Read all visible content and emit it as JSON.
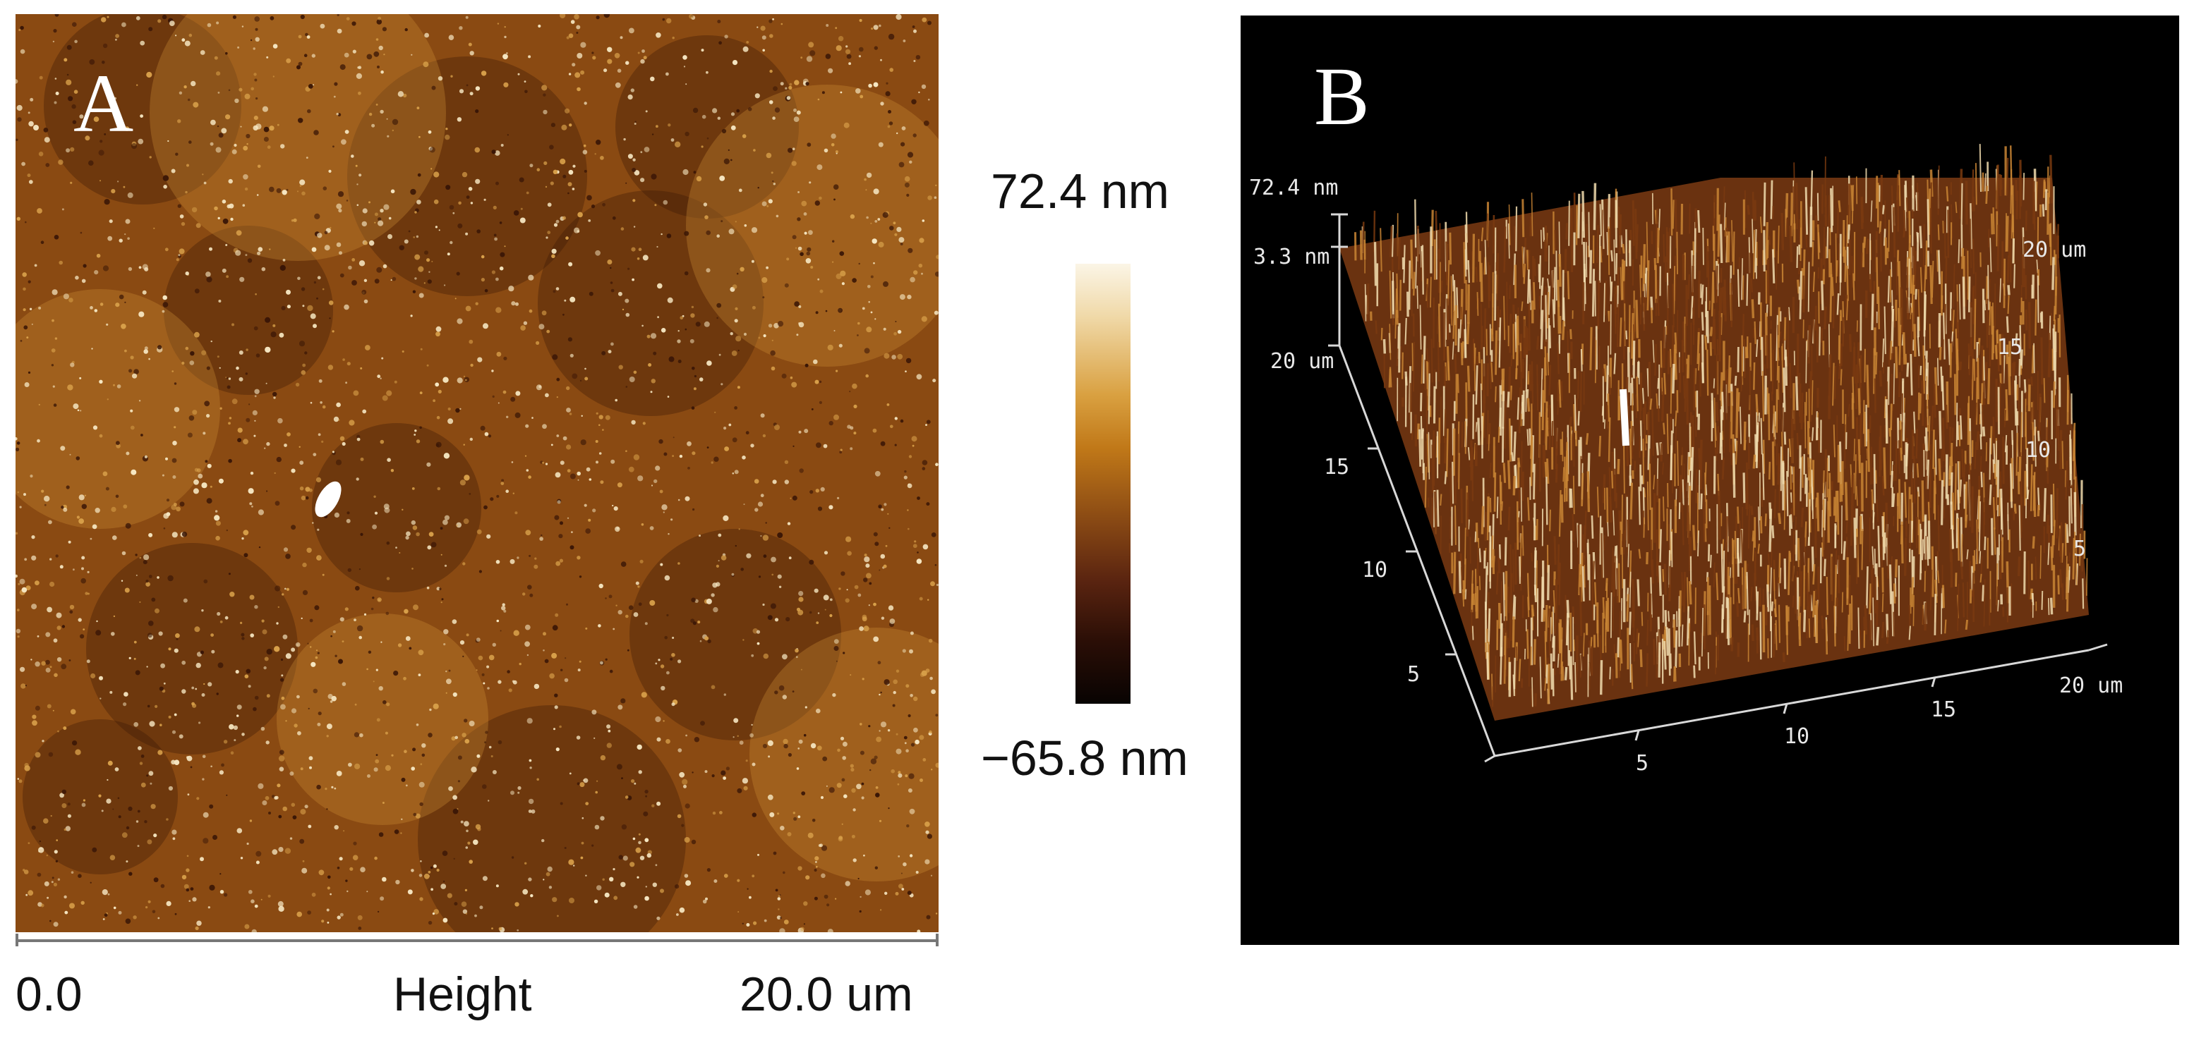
{
  "panel_a": {
    "letter": "A",
    "x_axis": {
      "start_label": "0.0",
      "mid_label": "Height",
      "end_label": "20.0 um"
    }
  },
  "color_scale": {
    "max_label": "72.4 nm",
    "min_label": "−65.8 nm",
    "colors": [
      "#fbf5e6",
      "#d9a040",
      "#8a4a14",
      "#2a0e06",
      "#080302"
    ]
  },
  "panel_b": {
    "letter": "B",
    "z_axis": {
      "top_label": "72.4 nm",
      "mid_label": "3.3 nm"
    },
    "left_axis_labels": [
      "20 um",
      "15",
      "10",
      "5"
    ],
    "right_axis_labels": [
      "20 um",
      "15",
      "10",
      "5"
    ],
    "bottom_axis_labels": [
      "5",
      "10",
      "15",
      "20 um"
    ]
  },
  "colors": {
    "surface_base": "#8a4a12",
    "surface_dark": "#3a1606",
    "surface_bright": "#f6e7c2",
    "background_b": "#000000"
  }
}
